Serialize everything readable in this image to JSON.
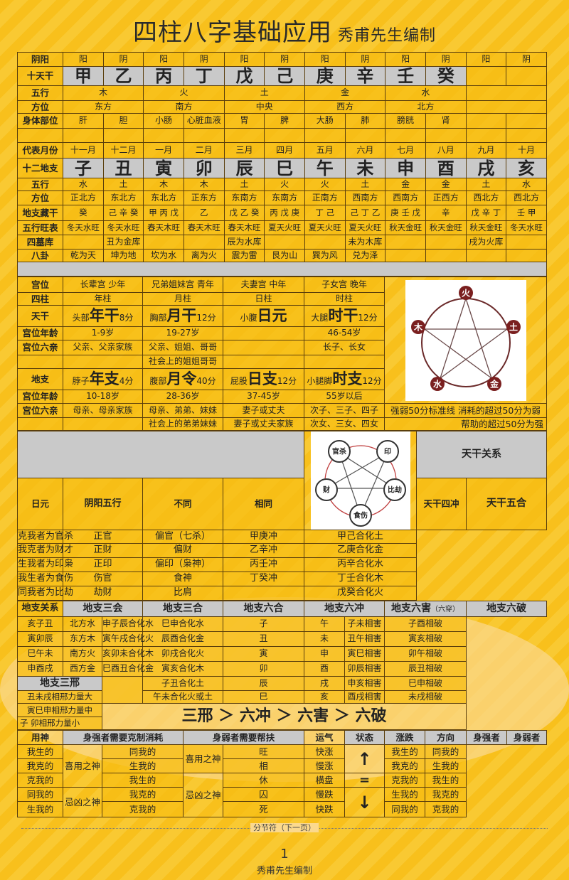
{
  "header": {
    "title": "四柱八字基础应用",
    "author": "秀甫先生编制"
  },
  "s1": {
    "rows": [
      {
        "label": "阴阳",
        "cells": [
          "阳",
          "阴",
          "阳",
          "阴",
          "阳",
          "阴",
          "阳",
          "阴",
          "阳",
          "阴",
          "阳",
          "阴"
        ]
      },
      {
        "label": "十天干",
        "cells": [
          "甲",
          "乙",
          "丙",
          "丁",
          "戊",
          "己",
          "庚",
          "辛",
          "壬",
          "癸",
          "",
          ""
        ]
      },
      {
        "label": "五行",
        "cells": [
          "木",
          "火",
          "土",
          "金",
          "水",
          ""
        ]
      },
      {
        "label": "方位",
        "cells": [
          "东方",
          "南方",
          "中央",
          "西方",
          "北方",
          ""
        ]
      },
      {
        "label": "身体部位",
        "cells": [
          "肝",
          "胆",
          "小肠",
          "心脏血液",
          "胃",
          "脾",
          "大肠",
          "肺",
          "膀胱",
          "肾",
          "",
          ""
        ]
      },
      {
        "label": "",
        "cells": [
          "",
          "",
          "",
          "",
          "",
          "",
          "",
          "",
          "",
          "",
          "",
          ""
        ]
      },
      {
        "label": "代表月份",
        "cells": [
          "十一月",
          "十二月",
          "一月",
          "二月",
          "三月",
          "四月",
          "五月",
          "六月",
          "七月",
          "八月",
          "九月",
          "十月"
        ]
      },
      {
        "label": "十二地支",
        "cells": [
          "子",
          "丑",
          "寅",
          "卯",
          "辰",
          "巳",
          "午",
          "未",
          "申",
          "酉",
          "戌",
          "亥"
        ]
      },
      {
        "label": "五行",
        "cells": [
          "水",
          "土",
          "木",
          "木",
          "土",
          "火",
          "火",
          "土",
          "金",
          "金",
          "土",
          "水"
        ]
      },
      {
        "label": "方位",
        "cells": [
          "正北方",
          "东北方",
          "东北方",
          "正东方",
          "东南方",
          "东南方",
          "正南方",
          "西南方",
          "西南方",
          "正西方",
          "西北方",
          "西北方"
        ]
      },
      {
        "label": "地支藏干",
        "cells": [
          "癸",
          "己 辛 癸",
          "甲 丙 戊",
          "乙",
          "戊 乙 癸",
          "丙 戊 庚",
          "丁 己",
          "己 丁 乙",
          "庚 壬 戊",
          "辛",
          "戊 辛 丁",
          "壬 甲"
        ]
      },
      {
        "label": "五行旺表",
        "cells": [
          "冬天水旺",
          "冬天水旺",
          "春天木旺",
          "春天木旺",
          "春天木旺",
          "夏天火旺",
          "夏天火旺",
          "夏天火旺",
          "秋天金旺",
          "秋天金旺",
          "秋天金旺",
          "冬天水旺"
        ]
      },
      {
        "label": "四墓库",
        "cells": [
          "",
          "丑为金库",
          "",
          "",
          "辰为水库",
          "",
          "",
          "未为木库",
          "",
          "",
          "戌为火库",
          ""
        ]
      },
      {
        "label": "八卦",
        "cells": [
          "乾为天",
          "坤为地",
          "坎为水",
          "离为火",
          "震为雷",
          "艮为山",
          "巽为风",
          "兑为泽",
          "",
          "",
          "",
          ""
        ]
      }
    ]
  },
  "s2": {
    "gongwei": {
      "label": "宫位",
      "cells": [
        "长辈宫 少年",
        "兄弟姐妹宫 青年",
        "夫妻宫 中年",
        "子女宫 晚年"
      ]
    },
    "sizhu": {
      "label": "四柱",
      "cells": [
        "年柱",
        "月柱",
        "日柱",
        "时柱"
      ]
    },
    "tiangan": {
      "label": "天干",
      "cells": [
        [
          "头部",
          "年干",
          "8分"
        ],
        [
          "胸部",
          "月干",
          "12分"
        ],
        [
          "小腹",
          "日元",
          ""
        ],
        [
          "大腿",
          "时干",
          "12分"
        ]
      ]
    },
    "age1": {
      "label": "宫位年龄",
      "cells": [
        "1-9岁",
        "19-27岁",
        "",
        "46-54岁"
      ]
    },
    "kin1": {
      "label": "宫位六亲",
      "cells": [
        "父亲、父亲家族",
        "父亲、姐姐、哥哥",
        "",
        "长子、长女"
      ]
    },
    "kin1b": [
      "",
      "社会上的姐姐哥哥",
      "",
      ""
    ],
    "dizhi": {
      "label": "地支",
      "cells": [
        [
          "脖子",
          "年支",
          "4分"
        ],
        [
          "腹部",
          "月令",
          "40分"
        ],
        [
          "屁股",
          "日支",
          "12分"
        ],
        [
          "小腿脚",
          "时支",
          "12分"
        ]
      ]
    },
    "age2": {
      "label": "宫位年龄",
      "cells": [
        "10-18岁",
        "28-36岁",
        "37-45岁",
        "55岁以后"
      ]
    },
    "kin2": {
      "label": "宫位六亲",
      "cells": [
        "母亲、母亲家族",
        "母亲、弟弟、妹妹",
        "妻子或丈夫",
        "次子、三子、四子"
      ]
    },
    "kin2b": [
      "",
      "社会上的弟弟妹妹",
      "妻子或丈夫家族",
      "次女、三女、四女"
    ],
    "note1": "强弱50分标准线 消耗的超过50分为弱",
    "note2": "帮助的超过50分为强",
    "wuxing_diagram": {
      "nodes": [
        "火",
        "土",
        "金",
        "水",
        "木"
      ],
      "colors": {
        "node": "#7a1f1f",
        "arrow": "#6b4a4a"
      }
    }
  },
  "s3": {
    "label": "日元",
    "headers": [
      "阴阳五行",
      "不同",
      "相同"
    ],
    "rows": [
      [
        "克我者为官杀",
        "正官",
        "偏官（七杀）"
      ],
      [
        "我克者为财才",
        "正财",
        "偏财"
      ],
      [
        "生我者为印枭",
        "正印",
        "偏印（枭神）"
      ],
      [
        "我生者为食伤",
        "伤官",
        "食神"
      ],
      [
        "同我者为比劫",
        "劫财",
        "比肩"
      ]
    ],
    "shishen_diagram": {
      "nodes": [
        "官杀",
        "印",
        "比劫",
        "食伤",
        "财"
      ]
    },
    "tg": {
      "title": "天干关系",
      "h1": "天干四冲",
      "h2": "天干五合",
      "chong": [
        "甲庚冲",
        "乙辛冲",
        "丙壬冲",
        "丁癸冲",
        ""
      ],
      "he": [
        "甲己合化土",
        "乙庚合化金",
        "丙辛合化水",
        "丁壬合化木",
        "戊癸合化火"
      ]
    }
  },
  "s4": {
    "label": "地支关系",
    "headers": [
      "地支三会",
      "地支三合",
      "地支六合",
      "地支六冲",
      "地支六害",
      "（六穿）",
      "地支六破"
    ],
    "sanhui": [
      [
        "亥子丑",
        "北方水"
      ],
      [
        "寅卯辰",
        "东方木"
      ],
      [
        "巳午未",
        "南方火"
      ],
      [
        "申酉戌",
        "西方金"
      ]
    ],
    "sanhe": [
      "申子辰合化水",
      "寅午戌合化火",
      "亥卯未合化木",
      "巳酉丑合化金"
    ],
    "liuhe": [
      "巳申合化水",
      "辰酉合化金",
      "卯戌合化火",
      "寅亥合化木",
      "子丑合化土",
      "午未合化火或土"
    ],
    "liuchong": [
      [
        "子",
        "午"
      ],
      [
        "丑",
        "未"
      ],
      [
        "寅",
        "申"
      ],
      [
        "卯",
        "酉"
      ],
      [
        "辰",
        "戌"
      ],
      [
        "巳",
        "亥"
      ]
    ],
    "liuhai": [
      "子未相害",
      "丑午相害",
      "寅巳相害",
      "卯辰相害",
      "申亥相害",
      "酉戌相害"
    ],
    "liupo": [
      "子酉相破",
      "寅亥相破",
      "卯午相破",
      "辰丑相破",
      "巳申相破",
      "未戌相破"
    ],
    "xing_header": "地支三邢",
    "xing": [
      "丑未戌相邢力量大",
      "寅巳申相邢力量中",
      "子  卯相邢力量小"
    ],
    "order": "三邢 ＞ 六冲 ＞ 六害 ＞ 六破"
  },
  "s5": {
    "label": "用神",
    "h_strong": "身强者需要克制消耗",
    "h_weak": "身弱者需要帮扶",
    "strong_rows": [
      "我生的",
      "我克的",
      "克我的",
      "同我的",
      "生我的"
    ],
    "strong_groups": [
      "喜用之神",
      "忌凶之神"
    ],
    "weak_rows": [
      "同我的",
      "生我的",
      "我生的",
      "我克的",
      "克我的"
    ],
    "weak_groups": [
      "喜用之神",
      "忌凶之神"
    ],
    "yunqi": "运气",
    "headers": [
      "状态",
      "涨跌",
      "方向",
      "身强者",
      "身弱者"
    ],
    "state": [
      "旺",
      "相",
      "休",
      "囚",
      "死"
    ],
    "trend": [
      "快涨",
      "慢涨",
      "横盘",
      "慢跌",
      "快跌"
    ],
    "direction": {
      "up": "↑",
      "flat": "=",
      "down": "↓"
    },
    "qiang": [
      "我生的",
      "我克的",
      "克我的",
      "生我的",
      "同我的"
    ],
    "ruo": [
      "同我的",
      "生我的",
      "我生的",
      "我克的",
      "克我的"
    ]
  },
  "footer": {
    "separator": "分节符（下一页）",
    "page": "1",
    "author": "秀甫先生编制"
  }
}
